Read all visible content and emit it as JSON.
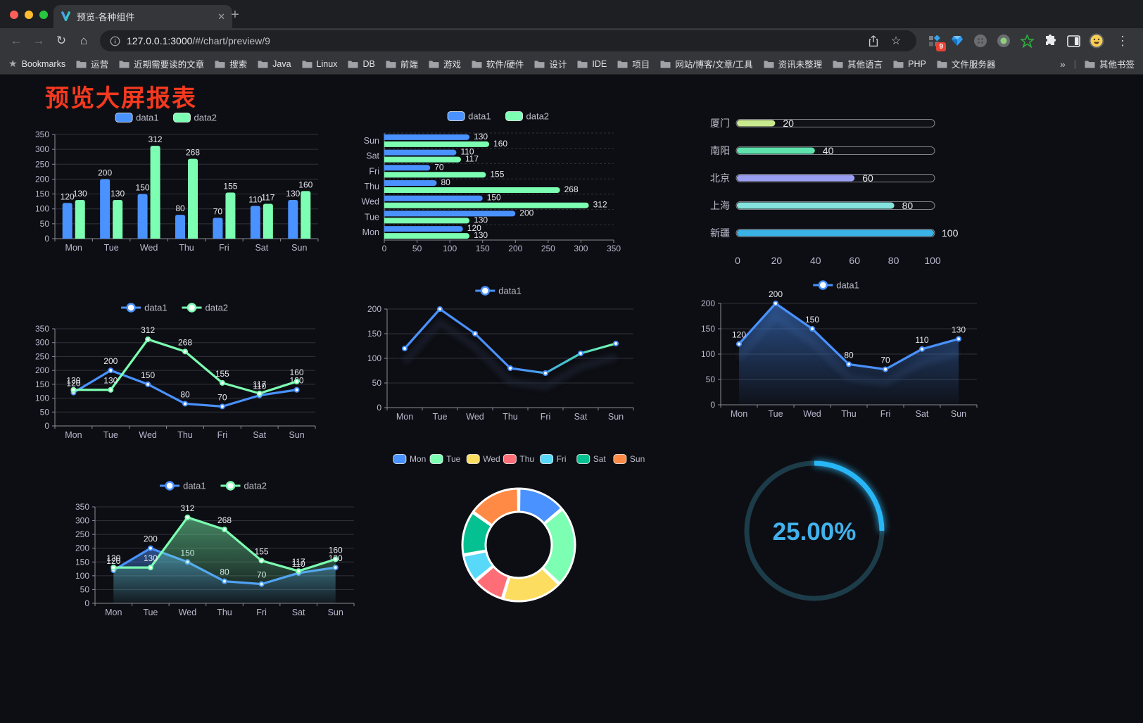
{
  "browser": {
    "tab_title": "预览-各种组件",
    "url_host": "127.0.0.1:3000",
    "url_path": "/#/chart/preview/9",
    "extension_badge": "9",
    "bookmarks_label": "Bookmarks",
    "bookmarks": [
      "运营",
      "近期需要读的文章",
      "搜索",
      "Java",
      "Linux",
      "DB",
      "前端",
      "游戏",
      "软件/硬件",
      "设计",
      "IDE",
      "项目",
      "网站/博客/文章/工具",
      "资讯未整理",
      "其他语言",
      "PHP",
      "文件服务器"
    ],
    "bookmarks_overflow": "»",
    "other_bookmarks": "其他书签"
  },
  "icons": {
    "back": "←",
    "forward": "→",
    "reload": "↻",
    "home": "⌂",
    "star": "☆",
    "bookmarks_star": "★",
    "menu": "⋮",
    "new_tab": "+",
    "close_tab": "✕",
    "divider": "|"
  },
  "page": {
    "title": "预览大屏报表",
    "title_color": "#f5391f",
    "background": "#0d0e13"
  },
  "chart_data": [
    {
      "id": "c1",
      "type": "grouped-bar",
      "categories": [
        "Mon",
        "Tue",
        "Wed",
        "Thu",
        "Fri",
        "Sat",
        "Sun"
      ],
      "series": [
        {
          "name": "data1",
          "color": "#4992ff",
          "values": [
            120,
            200,
            150,
            80,
            70,
            110,
            130
          ]
        },
        {
          "name": "data2",
          "color": "#7cffb2",
          "values": [
            130,
            130,
            312,
            268,
            155,
            117,
            160
          ]
        }
      ],
      "ylim": [
        0,
        350
      ],
      "ytick_step": 50,
      "show_labels": true,
      "grid": true,
      "legend_position": "top"
    },
    {
      "id": "c2",
      "type": "grouped-hbar",
      "categories": [
        "Mon",
        "Tue",
        "Wed",
        "Thu",
        "Fri",
        "Sat",
        "Sun"
      ],
      "series": [
        {
          "name": "data1",
          "color": "#4992ff",
          "values": [
            120,
            200,
            150,
            80,
            70,
            110,
            130
          ]
        },
        {
          "name": "data2",
          "color": "#7cffb2",
          "values": [
            130,
            130,
            312,
            268,
            155,
            117,
            160
          ]
        }
      ],
      "xlim": [
        0,
        350
      ],
      "xtick_step": 50,
      "show_labels": true,
      "grid": true,
      "legend_position": "top"
    },
    {
      "id": "c3",
      "type": "progress",
      "rows": [
        {
          "label": "厦门",
          "value": 20,
          "color": "#c9e98f"
        },
        {
          "label": "南阳",
          "value": 40,
          "color": "#5fe3ae"
        },
        {
          "label": "北京",
          "value": 60,
          "color": "#9a9ef0"
        },
        {
          "label": "上海",
          "value": 80,
          "color": "#85e2dc"
        },
        {
          "label": "新疆",
          "value": 100,
          "color": "#3ab2e6"
        }
      ],
      "xlim": [
        0,
        100
      ],
      "xticks": [
        0,
        20,
        40,
        60,
        80,
        100
      ]
    },
    {
      "id": "c4",
      "type": "line",
      "categories": [
        "Mon",
        "Tue",
        "Wed",
        "Thu",
        "Fri",
        "Sat",
        "Sun"
      ],
      "series": [
        {
          "name": "data1",
          "color": "#4992ff",
          "values": [
            120,
            200,
            150,
            80,
            70,
            110,
            130
          ]
        },
        {
          "name": "data2",
          "color": "#7cffb2",
          "values": [
            130,
            130,
            312,
            268,
            155,
            117,
            160
          ]
        }
      ],
      "ylim": [
        0,
        350
      ],
      "ytick_step": 50,
      "show_labels": true,
      "grid": true,
      "legend_position": "top"
    },
    {
      "id": "c5",
      "type": "line",
      "categories": [
        "Mon",
        "Tue",
        "Wed",
        "Thu",
        "Fri",
        "Sat",
        "Sun"
      ],
      "series": [
        {
          "name": "data1",
          "color": "#4992ff",
          "color_end": "#7cffb2",
          "gradient": true,
          "shadow": true,
          "values": [
            120,
            200,
            150,
            80,
            70,
            110,
            130
          ]
        }
      ],
      "ylim": [
        0,
        200
      ],
      "ytick_step": 50,
      "show_labels": false,
      "grid": true,
      "legend_position": "top"
    },
    {
      "id": "c6",
      "type": "line",
      "categories": [
        "Mon",
        "Tue",
        "Wed",
        "Thu",
        "Fri",
        "Sat",
        "Sun"
      ],
      "series": [
        {
          "name": "data1",
          "color": "#4992ff",
          "area": true,
          "shadow": true,
          "values": [
            120,
            200,
            150,
            80,
            70,
            110,
            130
          ]
        }
      ],
      "ylim": [
        0,
        200
      ],
      "ytick_step": 50,
      "show_labels": true,
      "grid": true,
      "legend_position": "top"
    },
    {
      "id": "c7",
      "type": "line",
      "categories": [
        "Mon",
        "Tue",
        "Wed",
        "Thu",
        "Fri",
        "Sat",
        "Sun"
      ],
      "series": [
        {
          "name": "data1",
          "color": "#4992ff",
          "area": true,
          "values": [
            120,
            200,
            150,
            80,
            70,
            110,
            130
          ]
        },
        {
          "name": "data2",
          "color": "#7cffb2",
          "area": true,
          "values": [
            130,
            130,
            312,
            268,
            155,
            117,
            160
          ]
        }
      ],
      "ylim": [
        0,
        350
      ],
      "ytick_step": 50,
      "show_labels": true,
      "grid": true,
      "legend_position": "top"
    },
    {
      "id": "c8",
      "type": "donut",
      "slices": [
        {
          "name": "Mon",
          "value": 120,
          "color": "#4992ff"
        },
        {
          "name": "Tue",
          "value": 200,
          "color": "#7cffb2"
        },
        {
          "name": "Wed",
          "value": 150,
          "color": "#fddd60"
        },
        {
          "name": "Thu",
          "value": 80,
          "color": "#ff6e76"
        },
        {
          "name": "Fri",
          "value": 70,
          "color": "#58d9f9"
        },
        {
          "name": "Sat",
          "value": 110,
          "color": "#05c091"
        },
        {
          "name": "Sun",
          "value": 130,
          "color": "#ff8a45"
        }
      ],
      "border_color": "#ffffff",
      "legend_position": "top"
    },
    {
      "id": "c9",
      "type": "gauge",
      "value": 25,
      "max": 100,
      "label": "25.00%",
      "color": "#29b6f6",
      "track_color": "#1d3c49",
      "text_color": "#41b1ec"
    }
  ]
}
